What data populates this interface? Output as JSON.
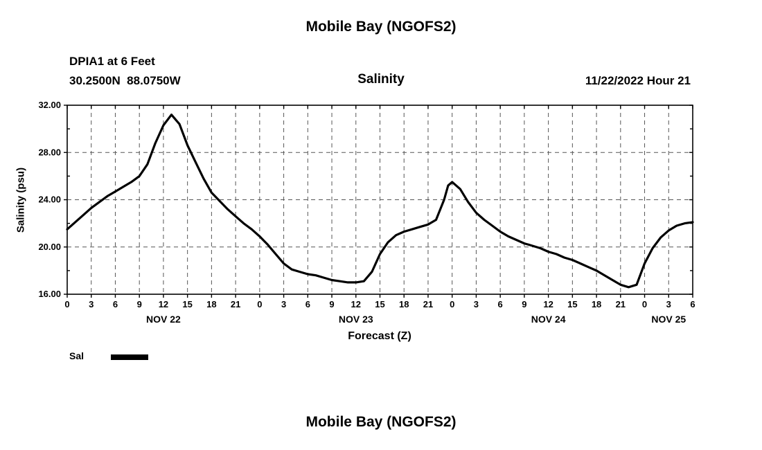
{
  "page": {
    "title": "Mobile Bay (NGOFS2)",
    "bottom_title": "Mobile Bay (NGOFS2)"
  },
  "header": {
    "station": "DPIA1 at 6 Feet",
    "coordinates": "30.2500N  88.0750W",
    "plot_title": "Salinity",
    "datetime": "11/22/2022 Hour 21"
  },
  "legend": {
    "label": "Sal",
    "color": "#000000"
  },
  "chart_data": {
    "type": "line",
    "title": "Mobile Bay (NGOFS2)",
    "subtitle": "Salinity",
    "xlabel": "Forecast (Z)",
    "ylabel": "Salinity (psu)",
    "ylim": [
      16,
      32
    ],
    "y_ticks": [
      16,
      20,
      24,
      28,
      32
    ],
    "y_tick_labels": [
      "16.00",
      "20.00",
      "24.00",
      "28.00",
      "32.00"
    ],
    "x_hours_total": 78,
    "x_tick_interval": 3,
    "x_tick_labels": [
      "0",
      "3",
      "6",
      "9",
      "12",
      "15",
      "18",
      "21",
      "0",
      "3",
      "6",
      "9",
      "12",
      "15",
      "18",
      "21",
      "0",
      "3",
      "6",
      "9",
      "12",
      "15",
      "18",
      "21",
      "0",
      "3",
      "6"
    ],
    "date_labels": [
      {
        "label": "NOV 22",
        "hour": 12
      },
      {
        "label": "NOV 23",
        "hour": 36
      },
      {
        "label": "NOV 24",
        "hour": 60
      },
      {
        "label": "NOV 25",
        "hour": 75
      }
    ],
    "grid": true,
    "legend_position": "bottom-left",
    "series": [
      {
        "name": "Sal",
        "color": "#000000",
        "points": [
          [
            0,
            21.5
          ],
          [
            1,
            22.1
          ],
          [
            2,
            22.7
          ],
          [
            3,
            23.3
          ],
          [
            4,
            23.8
          ],
          [
            5,
            24.3
          ],
          [
            6,
            24.7
          ],
          [
            7,
            25.1
          ],
          [
            8,
            25.5
          ],
          [
            9,
            26.0
          ],
          [
            10,
            27.0
          ],
          [
            11,
            28.8
          ],
          [
            12,
            30.3
          ],
          [
            13,
            31.2
          ],
          [
            14,
            30.4
          ],
          [
            15,
            28.6
          ],
          [
            16,
            27.2
          ],
          [
            17,
            25.8
          ],
          [
            18,
            24.6
          ],
          [
            19,
            23.9
          ],
          [
            20,
            23.2
          ],
          [
            21,
            22.6
          ],
          [
            22,
            22.0
          ],
          [
            23,
            21.5
          ],
          [
            24,
            20.9
          ],
          [
            25,
            20.2
          ],
          [
            26,
            19.4
          ],
          [
            27,
            18.6
          ],
          [
            28,
            18.1
          ],
          [
            29,
            17.9
          ],
          [
            30,
            17.7
          ],
          [
            31,
            17.6
          ],
          [
            32,
            17.4
          ],
          [
            33,
            17.2
          ],
          [
            34,
            17.1
          ],
          [
            35,
            17.0
          ],
          [
            36,
            17.0
          ],
          [
            37,
            17.1
          ],
          [
            38,
            17.9
          ],
          [
            39,
            19.4
          ],
          [
            40,
            20.4
          ],
          [
            41,
            21.0
          ],
          [
            42,
            21.3
          ],
          [
            43,
            21.5
          ],
          [
            44,
            21.7
          ],
          [
            45,
            21.9
          ],
          [
            46,
            22.3
          ],
          [
            47,
            24.0
          ],
          [
            47.5,
            25.2
          ],
          [
            48,
            25.5
          ],
          [
            49,
            24.9
          ],
          [
            50,
            23.8
          ],
          [
            51,
            22.9
          ],
          [
            52,
            22.3
          ],
          [
            53,
            21.8
          ],
          [
            54,
            21.3
          ],
          [
            55,
            20.9
          ],
          [
            56,
            20.6
          ],
          [
            57,
            20.3
          ],
          [
            58,
            20.1
          ],
          [
            59,
            19.9
          ],
          [
            60,
            19.6
          ],
          [
            61,
            19.4
          ],
          [
            62,
            19.1
          ],
          [
            63,
            18.9
          ],
          [
            64,
            18.6
          ],
          [
            65,
            18.3
          ],
          [
            66,
            18.0
          ],
          [
            67,
            17.6
          ],
          [
            68,
            17.2
          ],
          [
            69,
            16.8
          ],
          [
            70,
            16.6
          ],
          [
            71,
            16.8
          ],
          [
            72,
            18.6
          ],
          [
            73,
            19.9
          ],
          [
            74,
            20.8
          ],
          [
            75,
            21.4
          ],
          [
            76,
            21.8
          ],
          [
            77,
            22.0
          ],
          [
            78,
            22.1
          ]
        ]
      }
    ]
  }
}
